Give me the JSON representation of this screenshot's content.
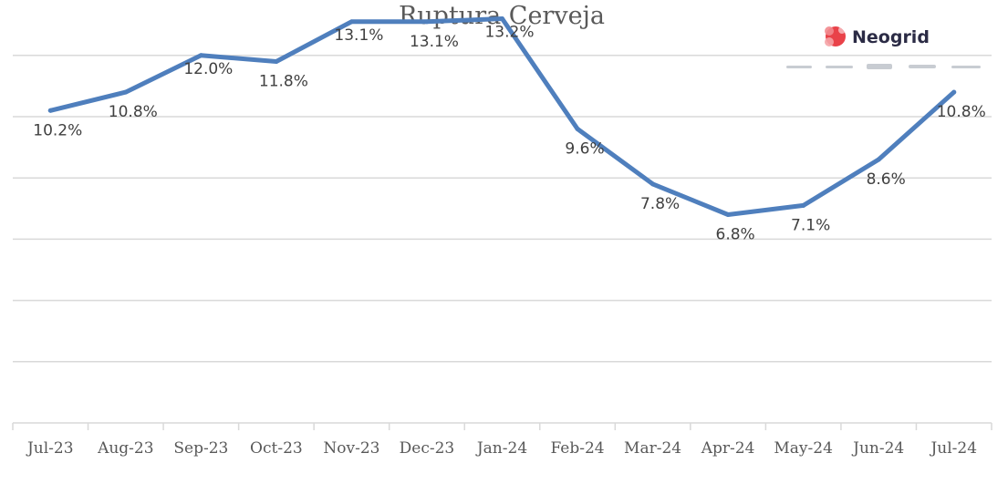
{
  "chart_data": {
    "type": "line",
    "title": "Ruptura Cerveja",
    "xlabel": "",
    "ylabel": "",
    "categories": [
      "Jul-23",
      "Aug-23",
      "Sep-23",
      "Oct-23",
      "Nov-23",
      "Dec-23",
      "Jan-24",
      "Feb-24",
      "Mar-24",
      "Apr-24",
      "May-24",
      "Jun-24",
      "Jul-24"
    ],
    "series": [
      {
        "values": [
          10.2,
          10.8,
          12.0,
          11.8,
          13.1,
          13.1,
          13.2,
          9.6,
          7.8,
          6.8,
          7.1,
          8.6,
          10.8
        ],
        "labels": [
          "10.2%",
          "10.8%",
          "12.0%",
          "11.8%",
          "13.1%",
          "13.1%",
          "13.2%",
          "9.6%",
          "7.8%",
          "6.8%",
          "7.1%",
          "8.6%",
          "10.8%"
        ],
        "color": "#4f7fbd"
      }
    ],
    "ylim": [
      0,
      14
    ],
    "grid": true,
    "legend": "none"
  },
  "logo": {
    "brand": "Neogrid",
    "brand_color": "#e8383f",
    "icon": "neogrid-logo-icon"
  }
}
